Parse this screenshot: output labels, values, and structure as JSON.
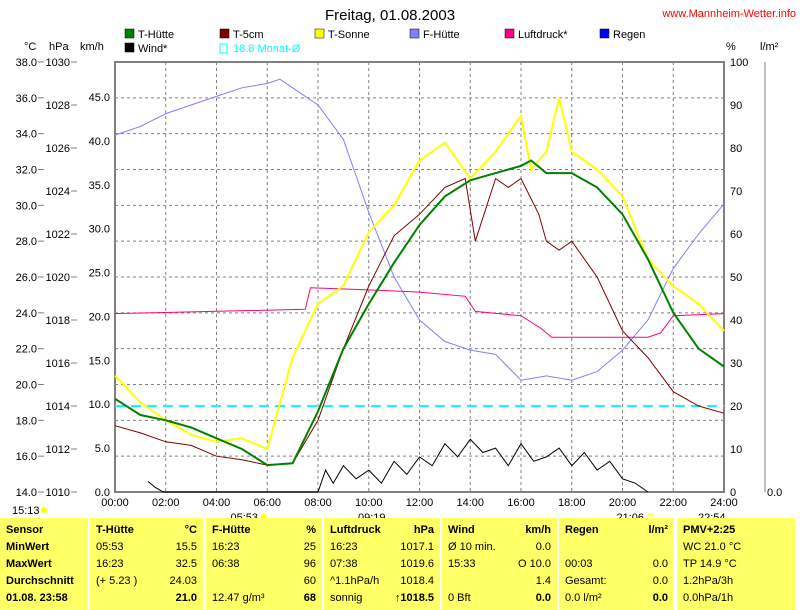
{
  "header": {
    "title": "Freitag, 01.08.2003",
    "site": "www.Mannheim-Wetter.info"
  },
  "axes": {
    "c_unit": "°C",
    "hpa_unit": "hPa",
    "kmh_unit": "km/h",
    "pct_unit": "%",
    "rain_unit": "l/m²",
    "c_ticks": [
      "38.0",
      "36.0",
      "34.0",
      "32.0",
      "30.0",
      "28.0",
      "26.0",
      "24.0",
      "22.0",
      "20.0",
      "18.0",
      "16.0",
      "14.0"
    ],
    "hpa_ticks": [
      "1030",
      "1028",
      "1026",
      "1024",
      "1022",
      "1020",
      "1018",
      "1016",
      "1014",
      "1012",
      "1010"
    ],
    "kmh_ticks": [
      "45.0",
      "40.0",
      "35.0",
      "30.0",
      "25.0",
      "20.0",
      "15.0",
      "10.0",
      "5.0",
      "0.0"
    ],
    "pct_ticks": [
      "100",
      "90",
      "80",
      "70",
      "60",
      "50",
      "40",
      "30",
      "20",
      "10",
      "0"
    ],
    "rain_ticks": [
      "0.0"
    ],
    "x_ticks": [
      "00:00",
      "02:00",
      "04:00",
      "06:00",
      "08:00",
      "10:00",
      "12:00",
      "14:00",
      "16:00",
      "18:00",
      "20:00",
      "22:00",
      "24:00"
    ]
  },
  "legend": [
    {
      "label": "T-Hütte",
      "color": "#008000"
    },
    {
      "label": "T-5cm",
      "color": "#800000"
    },
    {
      "label": "T-Sonne",
      "color": "#ffff00"
    },
    {
      "label": "F-Hütte",
      "color": "#8080ff"
    },
    {
      "label": "Luftdruck*",
      "color": "#ff0080"
    },
    {
      "label": "Regen",
      "color": "#0000ff"
    },
    {
      "label": "Wind*",
      "color": "#000000"
    },
    {
      "label": "18.8 Monat-Ø",
      "color": "#00ffff"
    }
  ],
  "sun": {
    "t1": "15:13",
    "sunrise": "05:53",
    "t2": "09:19",
    "sunset": "21:06",
    "t3": "22:54"
  },
  "chart_data": {
    "type": "line",
    "title": "Freitag, 01.08.2003",
    "xlabel": "",
    "xlim": [
      0,
      24
    ],
    "ylim_c": [
      14,
      38
    ],
    "ylim_hpa": [
      1010,
      1030
    ],
    "ylim_kmh": [
      0,
      49
    ],
    "ylim_pct": [
      0,
      100
    ],
    "grid": true,
    "monthly_mean_c": 18.8,
    "series": [
      {
        "name": "T-Hütte",
        "axis": "c",
        "color": "#008000",
        "x": [
          0,
          1,
          2,
          3,
          4,
          5,
          6,
          7,
          8,
          9,
          10,
          11,
          12,
          13,
          14,
          15,
          16,
          16.4,
          17,
          18,
          19,
          20,
          21,
          22,
          23,
          24
        ],
        "y": [
          19.2,
          18.3,
          18.0,
          17.6,
          17.0,
          16.4,
          15.5,
          15.6,
          18.5,
          22.0,
          24.5,
          26.8,
          28.9,
          30.5,
          31.4,
          31.8,
          32.2,
          32.5,
          31.8,
          31.8,
          31.0,
          29.5,
          27.0,
          24.0,
          22.0,
          21.0
        ]
      },
      {
        "name": "T-5cm",
        "axis": "c",
        "color": "#800000",
        "x": [
          0,
          1,
          2,
          3,
          4,
          5,
          6,
          7,
          8,
          9,
          10,
          11,
          12,
          13,
          13.8,
          14.2,
          15,
          15.5,
          16,
          16.7,
          17,
          17.5,
          18,
          19,
          20,
          21,
          22,
          23,
          24
        ],
        "y": [
          17.7,
          17.3,
          16.8,
          16.6,
          16.0,
          15.8,
          15.5,
          15.6,
          18.0,
          22.0,
          25.5,
          28.3,
          29.5,
          31.0,
          31.5,
          28.0,
          31.5,
          31.0,
          31.5,
          29.5,
          28.0,
          27.5,
          28.0,
          26.0,
          23.0,
          21.5,
          19.6,
          18.8,
          18.4
        ]
      },
      {
        "name": "T-Sonne",
        "axis": "c",
        "color": "#ffff00",
        "x": [
          0,
          1,
          2,
          3,
          4,
          5,
          6,
          7,
          8,
          9,
          10,
          11,
          12,
          13,
          14,
          15,
          16,
          16.4,
          17,
          17.5,
          18,
          19,
          20,
          21,
          22,
          23,
          24
        ],
        "y": [
          20.5,
          19.0,
          18.0,
          17.2,
          16.8,
          17.0,
          16.4,
          21.5,
          24.5,
          25.5,
          28.5,
          30.0,
          32.5,
          33.5,
          31.5,
          33.0,
          35.0,
          32.0,
          33.0,
          36.0,
          33.0,
          32.0,
          30.5,
          27.0,
          25.5,
          24.5,
          23.0
        ]
      },
      {
        "name": "F-Hütte",
        "axis": "pct",
        "color": "#8080ff",
        "x": [
          0,
          1,
          2,
          3,
          4,
          5,
          6,
          6.5,
          7,
          8,
          9,
          10,
          11,
          12,
          13,
          14,
          15,
          16,
          17,
          18,
          19,
          20,
          21,
          22,
          23,
          24
        ],
        "y": [
          83,
          85,
          88,
          90,
          92,
          94,
          95,
          96,
          94,
          90,
          82,
          65,
          50,
          40,
          35,
          33,
          32,
          26,
          27,
          26,
          28,
          33,
          40,
          52,
          60,
          67
        ]
      },
      {
        "name": "Luftdruck*",
        "axis": "hpa",
        "color": "#ff0080",
        "x": [
          0,
          7.5,
          7.7,
          10,
          12,
          13.8,
          14.2,
          16,
          16.8,
          17.2,
          21,
          21.5,
          22,
          24
        ],
        "y": [
          1018.3,
          1018.5,
          1019.5,
          1019.4,
          1019.3,
          1019.1,
          1018.4,
          1018.2,
          1017.6,
          1017.2,
          1017.2,
          1017.4,
          1018.2,
          1018.3
        ]
      },
      {
        "name": "Wind*",
        "axis": "kmh",
        "color": "#000000",
        "x": [
          1.3,
          1.6,
          1.9,
          8,
          8.3,
          8.6,
          9,
          9.5,
          10,
          10.5,
          11,
          11.5,
          12,
          12.5,
          13,
          13.5,
          14,
          14.5,
          15,
          15.5,
          16,
          16.5,
          17,
          17.5,
          18,
          18.5,
          19,
          19.5,
          20,
          20.5,
          21
        ],
        "y": [
          1.2,
          0.5,
          0,
          0,
          2.5,
          1.0,
          3.0,
          1.5,
          2.5,
          1.0,
          3.5,
          2.0,
          4.0,
          3.0,
          5.5,
          4.0,
          6.0,
          4.5,
          5.0,
          3.0,
          5.5,
          3.5,
          4.0,
          5.0,
          3.0,
          4.5,
          2.5,
          3.5,
          1.5,
          1.0,
          0
        ]
      },
      {
        "name": "Regen",
        "axis": "rain",
        "color": "#0000ff",
        "x": [],
        "y": []
      }
    ]
  },
  "table": {
    "cols": [
      {
        "rows": [
          [
            "Sensor",
            ""
          ],
          [
            "MinWert",
            ""
          ],
          [
            "MaxWert",
            ""
          ],
          [
            "Durchschnitt",
            ""
          ],
          [
            "01.08. 23:58",
            ""
          ]
        ]
      },
      {
        "rows": [
          [
            "T-Hütte",
            "°C"
          ],
          [
            "05:53",
            "15.5"
          ],
          [
            "16:23",
            "32.5"
          ],
          [
            "(+ 5.23 )",
            "24.03"
          ],
          [
            "",
            "21.0"
          ]
        ]
      },
      {
        "rows": [
          [
            "F-Hütte",
            "%"
          ],
          [
            "16:23",
            "25"
          ],
          [
            "06:38",
            "96"
          ],
          [
            "",
            "60"
          ],
          [
            "12.47 g/m³",
            "68"
          ]
        ]
      },
      {
        "rows": [
          [
            "Luftdruck",
            "hPa"
          ],
          [
            "16:23",
            "1017.1"
          ],
          [
            "07:38",
            "1019.6"
          ],
          [
            "^1.1hPa/h",
            "1018.4"
          ],
          [
            "sonnig",
            "↑1018.5"
          ]
        ]
      },
      {
        "rows": [
          [
            "Wind",
            "km/h"
          ],
          [
            "Ø 10 min.",
            "0.0"
          ],
          [
            "15:33",
            "O 10.0"
          ],
          [
            "",
            "1.4"
          ],
          [
            "0 Bft",
            "0.0"
          ]
        ]
      },
      {
        "rows": [
          [
            "Regen",
            "l/m²"
          ],
          [
            "",
            ""
          ],
          [
            "00:03",
            "0.0"
          ],
          [
            "Gesamt:",
            "0.0"
          ],
          [
            "0.0 l/m²",
            "0.0"
          ]
        ]
      },
      {
        "rows": [
          [
            "PMV+2:25",
            ""
          ],
          [
            "WC 21.0 °C",
            ""
          ],
          [
            "TP 14.9 °C",
            ""
          ],
          [
            "1.2hPa/3h",
            ""
          ],
          [
            "0.0hPa/1h",
            ""
          ]
        ]
      }
    ]
  }
}
